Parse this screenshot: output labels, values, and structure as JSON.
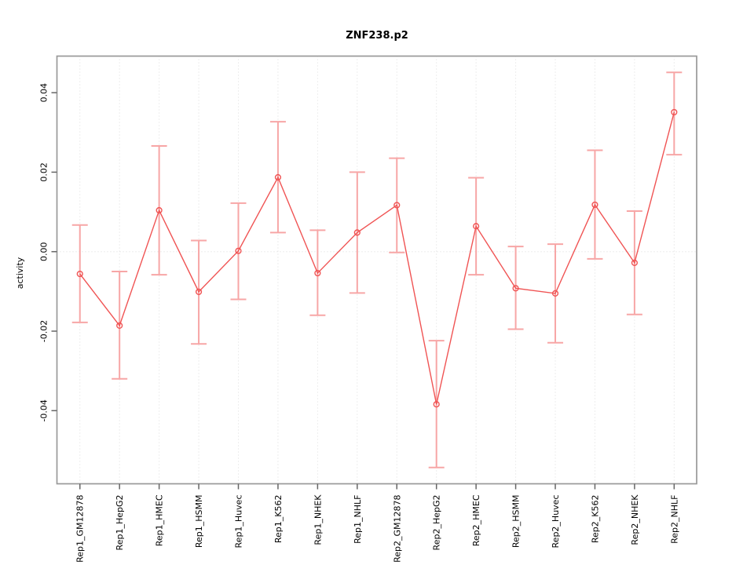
{
  "chart_data": {
    "type": "line",
    "title": "ZNF238.p2",
    "ylabel": "activity",
    "xlabel": "",
    "legend": "none",
    "marker": "open-circle",
    "grid": "vertical-dotted-per-category-plus-dotted-zero-line",
    "categories": [
      "Rep1_GM12878",
      "Rep1_HepG2",
      "Rep1_HMEC",
      "Rep1_HSMM",
      "Rep1_Huvec",
      "Rep1_K562",
      "Rep1_NHEK",
      "Rep1_NHLF",
      "Rep2_GM12878",
      "Rep2_HepG2",
      "Rep2_HMEC",
      "Rep2_HSMM",
      "Rep2_Huvec",
      "Rep2_K562",
      "Rep2_NHEK",
      "Rep2_NHLF"
    ],
    "values": [
      -0.0056,
      -0.0186,
      0.0104,
      -0.0101,
      0.0002,
      0.0187,
      -0.0054,
      0.0048,
      0.0117,
      -0.0384,
      0.0064,
      -0.0092,
      -0.0105,
      0.0118,
      -0.0028,
      0.0351
    ],
    "error_high": [
      0.0067,
      -0.005,
      0.0266,
      0.0028,
      0.0122,
      0.0327,
      0.0054,
      0.02,
      0.0235,
      -0.0224,
      0.0186,
      0.0013,
      0.0019,
      0.0255,
      0.0102,
      0.0451
    ],
    "error_low": [
      -0.0178,
      -0.032,
      -0.0058,
      -0.0232,
      -0.012,
      0.0048,
      -0.016,
      -0.0104,
      -0.0002,
      -0.0543,
      -0.0058,
      -0.0195,
      -0.0229,
      -0.0018,
      -0.0158,
      0.0244
    ],
    "ytick_values": [
      -0.04,
      -0.02,
      0,
      0.02,
      0.04
    ],
    "ytick_labels": [
      "-0.04",
      "-0.02",
      "0.00",
      "0.02",
      "0.04"
    ],
    "ylim": [
      -0.0584,
      0.0492
    ],
    "colors": {
      "series_line": "#f05454",
      "error_bar": "#f7a6a6",
      "grid": "#dcdcdc",
      "box": "#999999",
      "tick": "#666666",
      "text": "#000000",
      "background": "#ffffff"
    }
  }
}
